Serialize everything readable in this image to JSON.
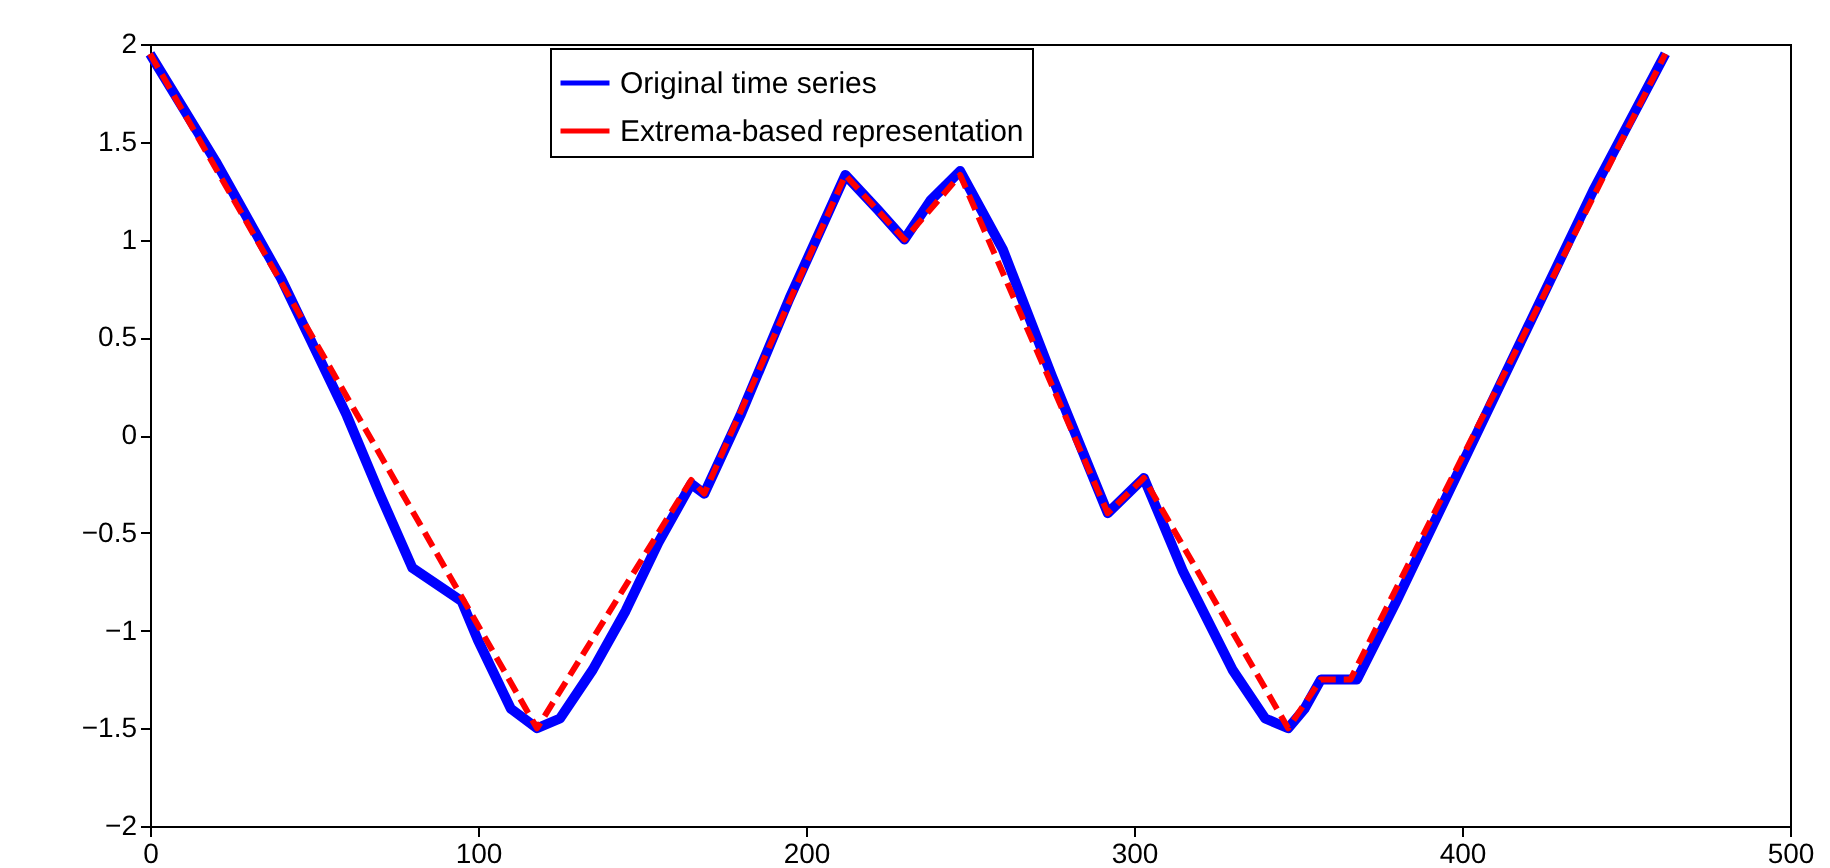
{
  "chart_data": {
    "type": "line",
    "xlim": [
      0,
      500
    ],
    "xticks": [
      0,
      100,
      200,
      300,
      400,
      500
    ],
    "ylim": [
      -2,
      2
    ],
    "yticks": [
      -2,
      -1.5,
      -1,
      -0.5,
      0,
      0.5,
      1,
      1.5,
      2
    ],
    "grid": false,
    "legend": "top",
    "series": [
      {
        "name": "Original time series",
        "color": "#0000ff",
        "line_style": "solid",
        "x": [
          0,
          20,
          40,
          60,
          70,
          80,
          95,
          100,
          110,
          118,
          125,
          135,
          145,
          155,
          165,
          169,
          180,
          195,
          212,
          222,
          230,
          238,
          247,
          260,
          275,
          292,
          303,
          315,
          330,
          340,
          347,
          352,
          357,
          362,
          368,
          380,
          400,
          420,
          440,
          462
        ],
        "values": [
          1.95,
          1.4,
          0.8,
          0.1,
          -0.3,
          -0.68,
          -0.85,
          -1.05,
          -1.4,
          -1.5,
          -1.45,
          -1.2,
          -0.9,
          -0.55,
          -0.25,
          -0.3,
          0.1,
          0.7,
          1.33,
          1.15,
          1.0,
          1.2,
          1.35,
          0.95,
          0.3,
          -0.4,
          -0.22,
          -0.7,
          -1.2,
          -1.45,
          -1.5,
          -1.4,
          -1.25,
          -1.25,
          -1.25,
          -0.85,
          -0.15,
          0.55,
          1.25,
          1.95
        ]
      },
      {
        "name": "Extrema-based representation",
        "color": "#ff0000",
        "line_style": "dashed",
        "x": [
          0,
          118,
          165,
          169,
          212,
          230,
          247,
          292,
          303,
          347,
          357,
          366,
          462
        ],
        "values": [
          1.95,
          -1.5,
          -0.23,
          -0.3,
          1.33,
          1.0,
          1.33,
          -0.4,
          -0.22,
          -1.5,
          -1.25,
          -1.25,
          1.95
        ]
      }
    ]
  }
}
